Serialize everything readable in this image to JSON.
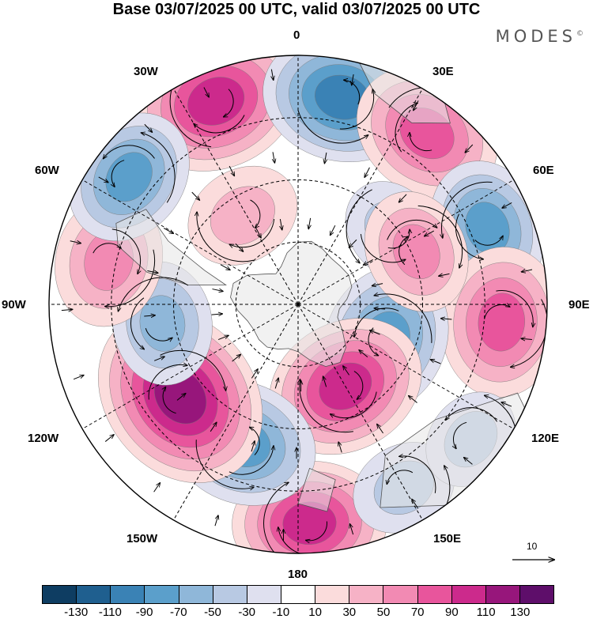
{
  "title": "Base 03/07/2025 00 UTC, valid 03/07/2025 00 UTC",
  "brand": "MODES",
  "brand_mark": "©",
  "longitude_labels": {
    "lon_0": "0",
    "lon_30e": "30E",
    "lon_60e": "60E",
    "lon_90e": "90E",
    "lon_120e": "120E",
    "lon_150e": "150E",
    "lon_180": "180",
    "lon_150w": "150W",
    "lon_120w": "120W",
    "lon_90w": "90W",
    "lon_60w": "60W",
    "lon_30w": "30W"
  },
  "vector_reference": {
    "label": "10"
  },
  "colorbar": {
    "colors": [
      "#0e3d62",
      "#1f5f8f",
      "#3a82b5",
      "#5b9fcb",
      "#8fb7d9",
      "#b8c9e3",
      "#dfe0ef",
      "#ffffff",
      "#fbdcdc",
      "#f6b2c6",
      "#f28ab3",
      "#e8559c",
      "#cc2a8c",
      "#97167b",
      "#5e0e6a"
    ],
    "labels": [
      "-130",
      "-110",
      "-90",
      "-70",
      "-50",
      "-30",
      "-10",
      "10",
      "30",
      "50",
      "70",
      "90",
      "110",
      "130"
    ]
  },
  "map": {
    "projection": "south-polar-stereographic",
    "anomalies": [
      {
        "lon": -22,
        "colat": 0.88,
        "value": 105
      },
      {
        "lon": 12,
        "colat": 0.85,
        "value": -95
      },
      {
        "lon": 37,
        "colat": 0.86,
        "value": 85
      },
      {
        "lon": 68,
        "colat": 0.82,
        "value": -70
      },
      {
        "lon": 95,
        "colat": 0.82,
        "value": 85
      },
      {
        "lon": 112,
        "colat": 0.38,
        "value": -85
      },
      {
        "lon": 150,
        "colat": 0.38,
        "value": 95
      },
      {
        "lon": 177,
        "colat": 0.88,
        "value": 90
      },
      {
        "lon": -158,
        "colat": 0.6,
        "value": -85
      },
      {
        "lon": -128,
        "colat": 0.6,
        "value": 125
      },
      {
        "lon": -98,
        "colat": 0.55,
        "value": -55
      },
      {
        "lon": -77,
        "colat": 0.78,
        "value": 65
      },
      {
        "lon": -53,
        "colat": 0.85,
        "value": -70
      },
      {
        "lon": -32,
        "colat": 0.42,
        "value": 45
      },
      {
        "lon": 52,
        "colat": 0.48,
        "value": -35
      },
      {
        "lon": 66,
        "colat": 0.52,
        "value": 55
      },
      {
        "lon": 150,
        "colat": 0.85,
        "value": -35
      },
      {
        "lon": 128,
        "colat": 0.88,
        "value": -30
      }
    ]
  }
}
